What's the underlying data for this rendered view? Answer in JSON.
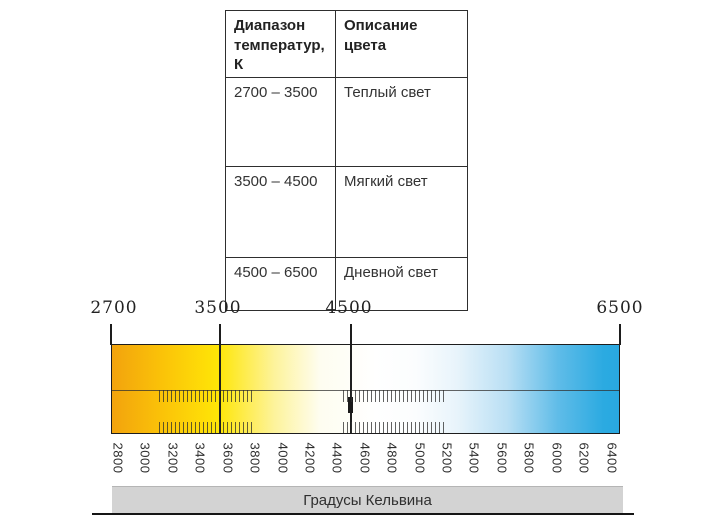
{
  "table": {
    "col1_header": "Диапазон температур, К",
    "col2_header": "Описание цвета",
    "rows": [
      {
        "range": "2700 – 3500",
        "description": "Теплый свет"
      },
      {
        "range": "3500 – 4500",
        "description": "Мягкий свет"
      },
      {
        "range": "4500 – 6500",
        "description": "Дневной свет"
      }
    ]
  },
  "scale": {
    "top_labels": [
      {
        "text": "2700"
      },
      {
        "text": "3500"
      },
      {
        "text": "4500"
      },
      {
        "text": "6500"
      }
    ],
    "bottom_labels": [
      "2800",
      "3000",
      "3200",
      "3400",
      "3600",
      "3800",
      "4000",
      "4200",
      "4400",
      "4600",
      "4800",
      "5000",
      "5200",
      "5400",
      "5600",
      "5800",
      "6000",
      "6200",
      "6400"
    ],
    "axis_title": "Градусы Кельвина",
    "colors": {
      "warm_end": "#f2a30d",
      "yellow_3500": "#ffe607",
      "white_4500": "#ffffff",
      "cool_end": "#29a8e1",
      "axis_bar_bg": "#d3d3d3"
    },
    "axis_range": [
      2700,
      6500
    ]
  }
}
